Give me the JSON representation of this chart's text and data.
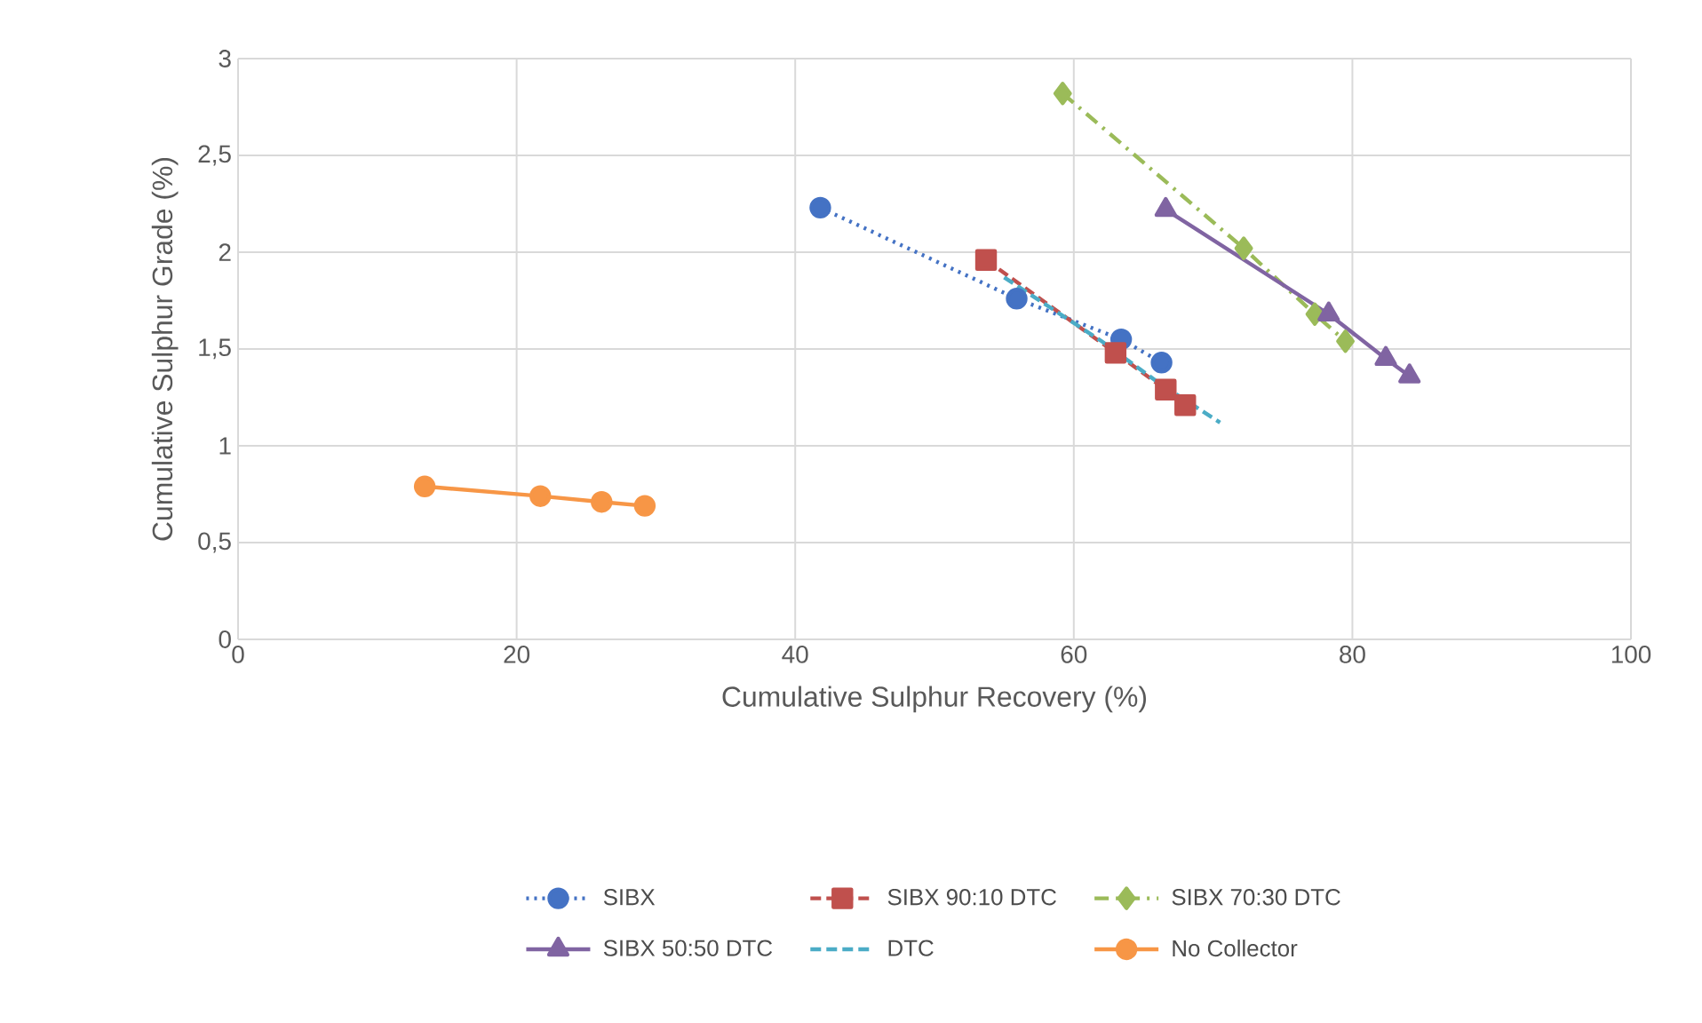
{
  "chart_data": {
    "type": "line",
    "xlabel": "Cumulative Sulphur Recovery (%)",
    "ylabel": "Cumulative Sulphur Grade (%)",
    "xlim": [
      0,
      100
    ],
    "ylim": [
      0,
      3
    ],
    "xticks": [
      0,
      20,
      40,
      60,
      80,
      100
    ],
    "yticks": [
      0,
      {
        "value": 0.5,
        "label": "0,5"
      },
      1,
      {
        "value": 1.5,
        "label": "1,5"
      },
      2,
      {
        "value": 2.5,
        "label": "2,5"
      },
      3
    ],
    "grid": true,
    "legend": "bottom",
    "series": [
      {
        "name": "SIBX",
        "color": "#4472c4",
        "marker": "circle",
        "line_style": "dotted",
        "x": [
          41.8,
          55.9,
          63.4,
          66.3
        ],
        "values": [
          2.23,
          1.76,
          1.55,
          1.43
        ]
      },
      {
        "name": "SIBX 90:10 DTC",
        "color": "#c0504d",
        "marker": "square",
        "line_style": "dashed",
        "x": [
          53.7,
          63.0,
          66.6,
          68.0
        ],
        "values": [
          1.96,
          1.48,
          1.29,
          1.21
        ]
      },
      {
        "name": "SIBX 70:30 DTC",
        "color": "#9bbb59",
        "marker": "diamond",
        "line_style": "dashdot",
        "x": [
          59.2,
          72.2,
          77.3,
          79.5
        ],
        "values": [
          2.82,
          2.02,
          1.68,
          1.54
        ]
      },
      {
        "name": "SIBX 50:50 DTC",
        "color": "#8064a2",
        "marker": "triangle",
        "line_style": "solid",
        "x": [
          66.6,
          78.3,
          82.4,
          84.1
        ],
        "values": [
          2.22,
          1.68,
          1.45,
          1.36
        ]
      },
      {
        "name": "DTC",
        "color": "#4bacc6",
        "marker": "none",
        "line_style": "dashed",
        "x": [
          55.0,
          62.0,
          66.0,
          70.5
        ],
        "values": [
          1.87,
          1.54,
          1.33,
          1.12
        ]
      },
      {
        "name": "No Collector",
        "color": "#f79646",
        "marker": "circle",
        "line_style": "solid",
        "x": [
          13.4,
          21.7,
          26.1,
          29.2
        ],
        "values": [
          0.79,
          0.74,
          0.71,
          0.69
        ]
      }
    ]
  }
}
